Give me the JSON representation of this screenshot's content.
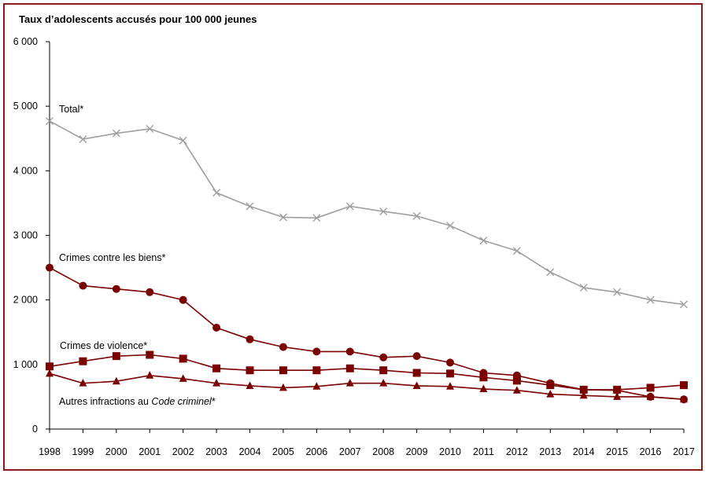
{
  "chart_data": {
    "type": "line",
    "title": "Taux d’adolescents accusés pour 100 000 jeunes",
    "xlabel": "",
    "ylabel": "",
    "ylim": [
      0,
      6000
    ],
    "yticks": [
      0,
      1000,
      2000,
      3000,
      4000,
      5000,
      6000
    ],
    "ytick_labels": [
      "0",
      "1 000",
      "2 000",
      "3 000",
      "4 000",
      "5 000",
      "6 000"
    ],
    "x": [
      "1998",
      "1999",
      "2000",
      "2001",
      "2002",
      "2003",
      "2004",
      "2005",
      "2006",
      "2007",
      "2008",
      "2009",
      "2010",
      "2011",
      "2012",
      "2013",
      "2014",
      "2015",
      "2016",
      "2017"
    ],
    "grid": false,
    "legend": "inline labels",
    "series": [
      {
        "name": "Total*",
        "color": "#9e9e9e",
        "marker": "x",
        "values": [
          4770,
          4490,
          4580,
          4650,
          4470,
          3660,
          3450,
          3280,
          3270,
          3450,
          3370,
          3300,
          3150,
          2920,
          2760,
          2430,
          2190,
          2120,
          2000,
          1930
        ]
      },
      {
        "name": "Crimes contre les biens*",
        "color": "#7b0000",
        "marker": "circle",
        "values": [
          2500,
          2220,
          2170,
          2120,
          2000,
          1570,
          1390,
          1270,
          1200,
          1200,
          1110,
          1130,
          1030,
          870,
          830,
          710,
          610,
          600,
          500,
          460
        ]
      },
      {
        "name": "Crimes de violence*",
        "color": "#7b0000",
        "marker": "square",
        "values": [
          970,
          1050,
          1130,
          1150,
          1090,
          940,
          910,
          910,
          910,
          940,
          910,
          870,
          860,
          800,
          750,
          680,
          610,
          610,
          640,
          680
        ]
      },
      {
        "name_prefix": "Autres infractions au ",
        "name_italic": "Code criminel",
        "name_suffix": "*",
        "color": "#7b0000",
        "marker": "triangle",
        "values": [
          860,
          710,
          740,
          830,
          780,
          710,
          670,
          640,
          660,
          710,
          710,
          670,
          660,
          620,
          600,
          540,
          520,
          500,
          500,
          460
        ]
      }
    ]
  }
}
